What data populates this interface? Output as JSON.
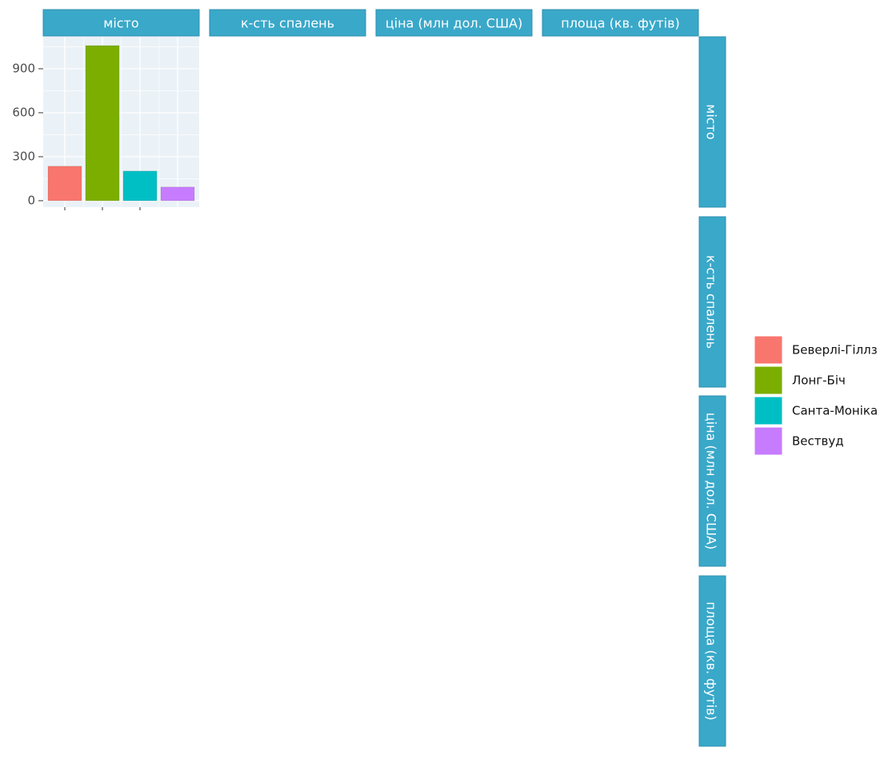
{
  "chart_data": {
    "type": "bar",
    "variables": [
      "місто",
      "к-сть спалень",
      "ціна (млн дол. США)",
      "площа (кв. футів)"
    ],
    "categories": [
      "Беверлі-Гіллз",
      "Лонг-Біч",
      "Санта-Моніка",
      "Вествуд"
    ],
    "values": [
      235,
      1058,
      202,
      93
    ],
    "colors": [
      "#F8766D",
      "#7CAE00",
      "#00BFC4",
      "#C77CFF"
    ],
    "ylim": [
      -44,
      1118
    ],
    "yticks": [
      0,
      300,
      600,
      900
    ],
    "grid": true
  }
}
